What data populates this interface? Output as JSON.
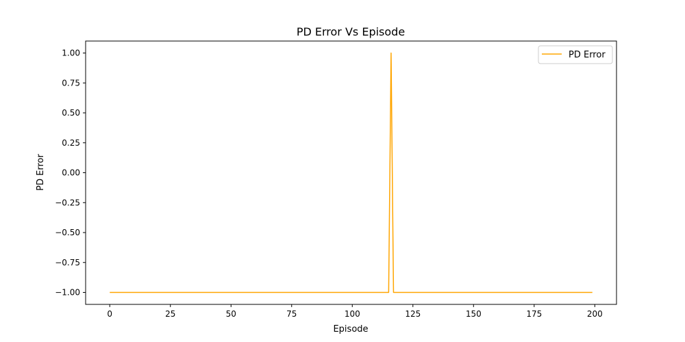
{
  "chart_data": {
    "type": "line",
    "title": "PD Error Vs Episode",
    "xlabel": "Episode",
    "ylabel": "PD Error",
    "xlim": [
      -9.95,
      208.95
    ],
    "ylim": [
      -1.1,
      1.1
    ],
    "xticks": [
      0,
      25,
      50,
      75,
      100,
      125,
      150,
      175,
      200
    ],
    "xtick_labels": [
      "0",
      "25",
      "50",
      "75",
      "100",
      "125",
      "150",
      "175",
      "200"
    ],
    "yticks": [
      1.0,
      0.75,
      0.5,
      0.25,
      0.0,
      -0.25,
      -0.5,
      -0.75,
      -1.0
    ],
    "ytick_labels": [
      "1.00",
      "0.75",
      "0.50",
      "0.25",
      "0.00",
      "−0.25",
      "−0.50",
      "−0.75",
      "−1.00"
    ],
    "grid": false,
    "legend_position": "top-right",
    "series": [
      {
        "name": "PD Error",
        "color": "#ffa500",
        "x": [
          0,
          115,
          116,
          117,
          199
        ],
        "y": [
          -1,
          -1,
          1,
          -1,
          -1
        ]
      }
    ]
  }
}
